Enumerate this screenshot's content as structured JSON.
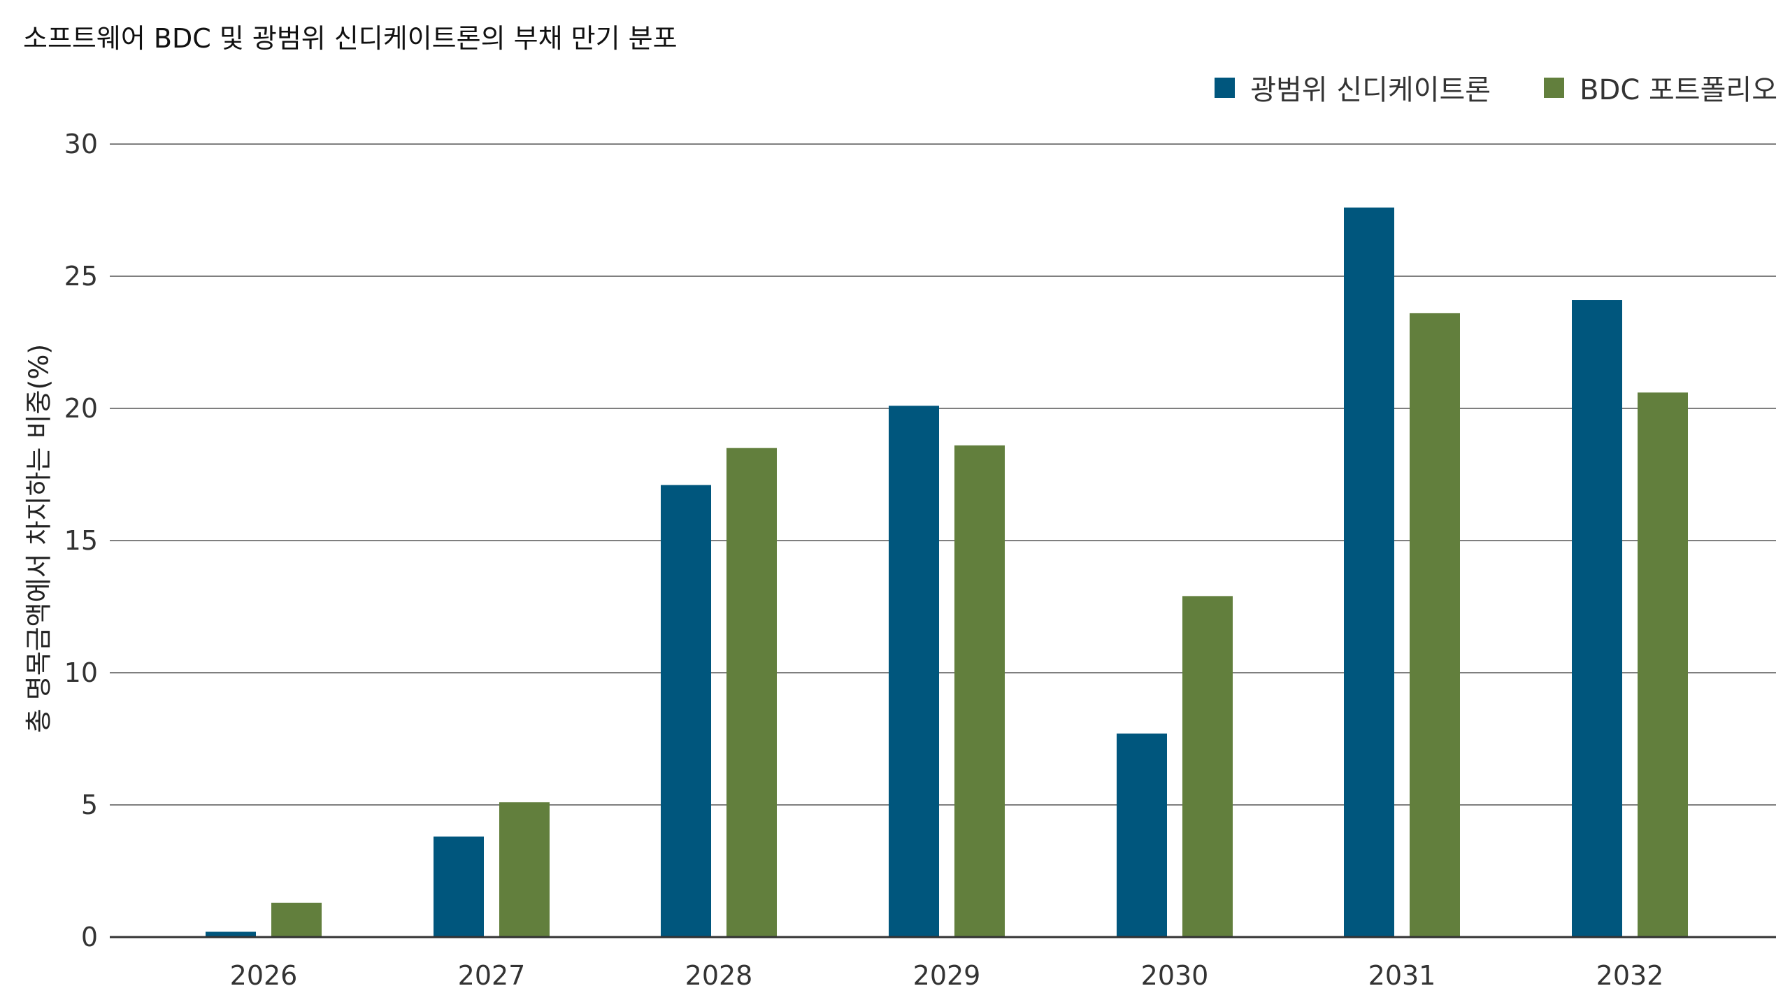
{
  "chart_data": {
    "type": "bar",
    "title": "소프트웨어 BDC 및 광범위 신디케이트론의 부채 만기 분포",
    "xlabel": "",
    "ylabel": "총 명목금액에서 차지하는 비중(%)",
    "categories": [
      "2026",
      "2027",
      "2028",
      "2029",
      "2030",
      "2031",
      "2032"
    ],
    "series": [
      {
        "name": "광범위 신디케이트론",
        "color": "#00567D",
        "values": [
          0.2,
          3.8,
          17.1,
          20.1,
          7.7,
          27.6,
          24.1
        ]
      },
      {
        "name": "BDC 포트폴리오",
        "color": "#627F3D",
        "values": [
          1.3,
          5.1,
          18.5,
          18.6,
          12.9,
          23.6,
          20.6
        ]
      }
    ],
    "ylim": [
      0,
      30
    ],
    "yticks": [
      0,
      5,
      10,
      15,
      20,
      25,
      30
    ],
    "grid": true,
    "legend_position": "top-right"
  }
}
